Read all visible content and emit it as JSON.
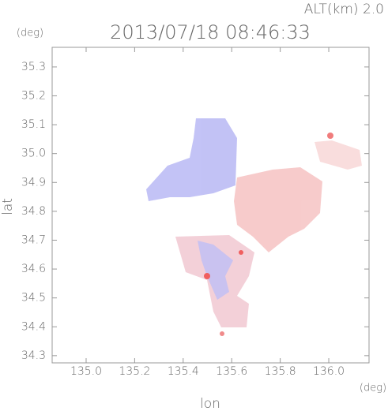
{
  "chart_data": {
    "type": "map",
    "title": "2013/07/18 08:46:33",
    "altitude_label": "ALT(km) 2.0",
    "x_label": "lon",
    "y_label": "lat",
    "x_unit": "(deg)",
    "y_unit": "(deg)",
    "xlim": [
      134.86,
      136.166
    ],
    "ylim": [
      34.275,
      35.368
    ],
    "xticks": [
      {
        "value": 135,
        "label": "135.0"
      },
      135.2,
      135.4,
      135.6,
      135.8,
      {
        "value": 136,
        "label": "136.0"
      }
    ],
    "yticks": [
      34.3,
      34.4,
      34.5,
      34.6,
      34.7,
      34.8,
      34.9,
      {
        "value": 35,
        "label": "35.0"
      },
      35.1,
      35.2,
      35.3
    ]
  }
}
